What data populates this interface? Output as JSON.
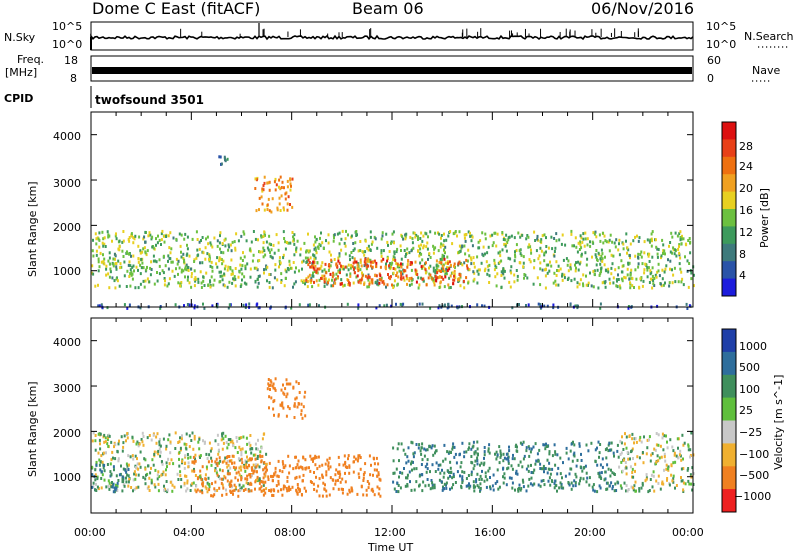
{
  "header": {
    "title": "Dome C East (fitACF)",
    "beam": "Beam 06",
    "date": "06/Nov/2016"
  },
  "panels": {
    "nsky_label": "N.Sky",
    "nsky_ticks": [
      "10^5",
      "10^0"
    ],
    "nsearch_label": "N.Search",
    "nsearch_ticks": [
      "10^5",
      "10^0"
    ],
    "freq_label_1": "Freq.",
    "freq_label_2": "[MHz]",
    "freq_ticks": [
      "18",
      "8"
    ],
    "nave_label": "Nave",
    "nave_ticks": [
      "60",
      "0"
    ],
    "cpid_label": "CPID",
    "cpid_text": "twofsound 3501"
  },
  "x_axis": {
    "label": "Time UT",
    "ticks": [
      "00:00",
      "04:00",
      "08:00",
      "12:00",
      "16:00",
      "20:00",
      "00:00"
    ]
  },
  "chart_data": [
    {
      "type": "heatmap",
      "variable": "Power",
      "ylabel": "Slant Range [km]",
      "yticks": [
        "4000",
        "3000",
        "2000",
        "1000"
      ],
      "ylim": [
        200,
        4500
      ],
      "xlim": [
        "00:00",
        "24:00"
      ],
      "colorbar_label": "Power [dB]",
      "colorbar_ticks": [
        "28",
        "24",
        "20",
        "16",
        "12",
        "8",
        "4"
      ],
      "colorscale": [
        "#1c1cdc",
        "#2a53a8",
        "#3e7a7c",
        "#3d9a5c",
        "#6cc040",
        "#e8d020",
        "#f0a020",
        "#ee7010",
        "#e84018",
        "#dd1010"
      ],
      "scatter_bands": [
        {
          "t_start_h": 0.0,
          "t_end_h": 24.0,
          "range_km_start": 650,
          "range_km_end": 1900,
          "value_db": 14
        },
        {
          "t_start_h": 8.5,
          "t_end_h": 15.0,
          "range_km_start": 700,
          "range_km_end": 1300,
          "value_db": 25
        },
        {
          "t_start_h": 6.5,
          "t_end_h": 8.0,
          "range_km_start": 2300,
          "range_km_end": 3100,
          "value_db": 22
        },
        {
          "t_start_h": 5.0,
          "t_end_h": 5.6,
          "range_km_start": 3300,
          "range_km_end": 3600,
          "value_db": 8
        },
        {
          "t_start_h": 0.0,
          "t_end_h": 24.0,
          "range_km_start": 200,
          "range_km_end": 300,
          "value_db": 6
        }
      ]
    },
    {
      "type": "heatmap",
      "variable": "Velocity",
      "ylabel": "Slant Range [km]",
      "yticks": [
        "4000",
        "3000",
        "2000",
        "1000"
      ],
      "ylim": [
        200,
        4500
      ],
      "xlim": [
        "00:00",
        "24:00"
      ],
      "colorbar_label": "Velocity [m s^-1]",
      "colorbar_ticks": [
        "1000",
        "500",
        "100",
        "25",
        "−25",
        "−100",
        "−500",
        "−1000"
      ],
      "colorscale": [
        "#1f3fa8",
        "#2e6e9c",
        "#3f8f5c",
        "#5fbf3c",
        "#c8c8c8",
        "#f0b030",
        "#f08020",
        "#ee2020"
      ],
      "scatter_bands": [
        {
          "t_start_h": 0.0,
          "t_end_h": 7.0,
          "range_km_start": 700,
          "range_km_end": 2000,
          "value_ms": 0
        },
        {
          "t_start_h": 0.0,
          "t_end_h": 1.5,
          "range_km_start": 700,
          "range_km_end": 1300,
          "value_ms": 100
        },
        {
          "t_start_h": 4.0,
          "t_end_h": 11.5,
          "range_km_start": 600,
          "range_km_end": 1500,
          "value_ms": -300
        },
        {
          "t_start_h": 7.0,
          "t_end_h": 8.5,
          "range_km_start": 2300,
          "range_km_end": 3200,
          "value_ms": -300
        },
        {
          "t_start_h": 12.0,
          "t_end_h": 21.0,
          "range_km_start": 700,
          "range_km_end": 1800,
          "value_ms": 300
        },
        {
          "t_start_h": 21.0,
          "t_end_h": 24.0,
          "range_km_start": 700,
          "range_km_end": 2000,
          "value_ms": 0
        }
      ]
    }
  ]
}
